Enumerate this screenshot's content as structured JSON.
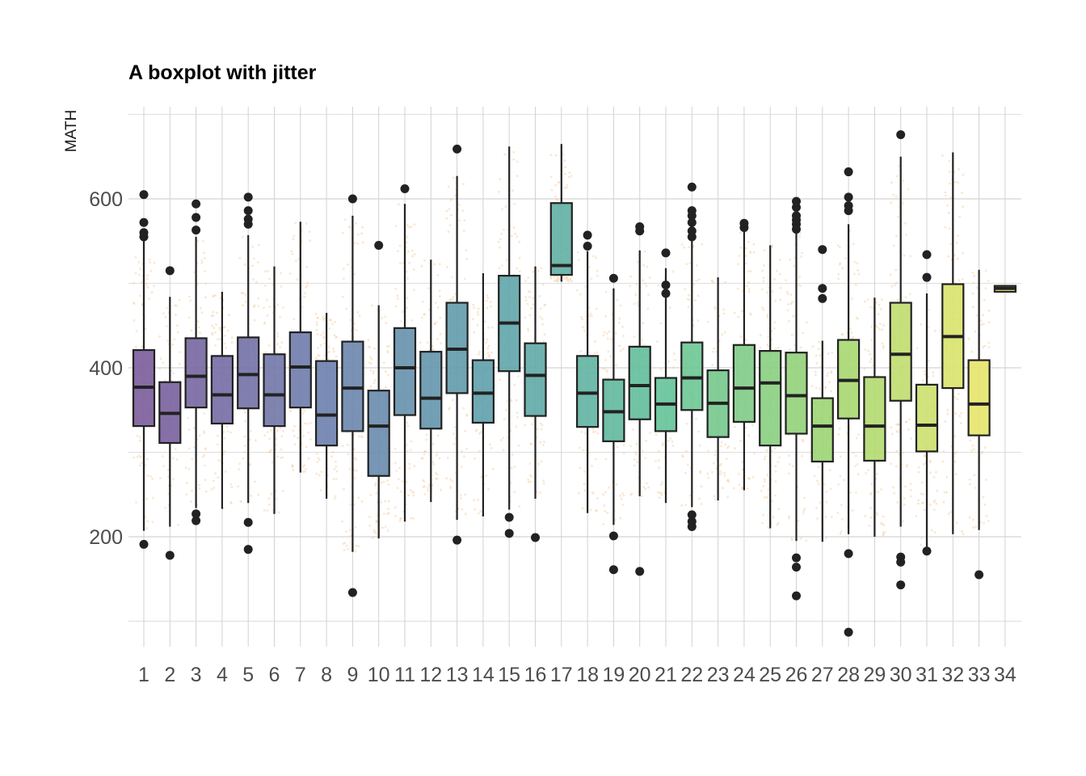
{
  "chart_data": {
    "type": "boxplot",
    "title": "A boxplot with jitter",
    "xlabel": "",
    "ylabel": "MATH",
    "ylim": [
      80,
      700
    ],
    "y_ticks": [
      200,
      400,
      600
    ],
    "grid": true,
    "legend": "none",
    "jitter_color": "#f5c99a",
    "box_stroke": "#222222",
    "outlier_color": "#222222",
    "palette": [
      "#7a5b99",
      "#f2e86a"
    ],
    "categories": [
      "1",
      "2",
      "3",
      "4",
      "5",
      "6",
      "7",
      "8",
      "9",
      "10",
      "11",
      "12",
      "13",
      "14",
      "15",
      "16",
      "17",
      "18",
      "19",
      "20",
      "21",
      "22",
      "23",
      "24",
      "25",
      "26",
      "27",
      "28",
      "29",
      "30",
      "31",
      "32",
      "33",
      "34"
    ],
    "boxes": [
      {
        "q1": 331,
        "median": 377,
        "q3": 421,
        "lo": 207,
        "hi": 551,
        "outliers": [
          191,
          555,
          560,
          572,
          605
        ]
      },
      {
        "q1": 311,
        "median": 346,
        "q3": 383,
        "lo": 212,
        "hi": 484,
        "outliers": [
          178,
          515
        ]
      },
      {
        "q1": 353,
        "median": 390,
        "q3": 435,
        "lo": 234,
        "hi": 555,
        "outliers": [
          219,
          227,
          563,
          578,
          594
        ]
      },
      {
        "q1": 334,
        "median": 368,
        "q3": 414,
        "lo": 233,
        "hi": 490,
        "outliers": []
      },
      {
        "q1": 352,
        "median": 392,
        "q3": 436,
        "lo": 240,
        "hi": 557,
        "outliers": [
          185,
          217,
          570,
          576,
          586,
          602
        ]
      },
      {
        "q1": 331,
        "median": 368,
        "q3": 416,
        "lo": 227,
        "hi": 520,
        "outliers": []
      },
      {
        "q1": 353,
        "median": 401,
        "q3": 442,
        "lo": 276,
        "hi": 573,
        "outliers": []
      },
      {
        "q1": 308,
        "median": 344,
        "q3": 408,
        "lo": 245,
        "hi": 465,
        "outliers": []
      },
      {
        "q1": 325,
        "median": 376,
        "q3": 431,
        "lo": 182,
        "hi": 580,
        "outliers": [
          134,
          600
        ]
      },
      {
        "q1": 272,
        "median": 331,
        "q3": 373,
        "lo": 198,
        "hi": 474,
        "outliers": [
          545
        ]
      },
      {
        "q1": 344,
        "median": 400,
        "q3": 447,
        "lo": 218,
        "hi": 594,
        "outliers": [
          612
        ]
      },
      {
        "q1": 328,
        "median": 364,
        "q3": 419,
        "lo": 241,
        "hi": 528,
        "outliers": []
      },
      {
        "q1": 370,
        "median": 422,
        "q3": 477,
        "lo": 220,
        "hi": 627,
        "outliers": [
          196,
          659
        ]
      },
      {
        "q1": 335,
        "median": 370,
        "q3": 409,
        "lo": 224,
        "hi": 512,
        "outliers": []
      },
      {
        "q1": 396,
        "median": 453,
        "q3": 509,
        "lo": 232,
        "hi": 662,
        "outliers": [
          204,
          223
        ]
      },
      {
        "q1": 343,
        "median": 391,
        "q3": 429,
        "lo": 245,
        "hi": 520,
        "outliers": [
          199
        ]
      },
      {
        "q1": 510,
        "median": 521,
        "q3": 595,
        "lo": 502,
        "hi": 665,
        "outliers": []
      },
      {
        "q1": 330,
        "median": 370,
        "q3": 414,
        "lo": 228,
        "hi": 538,
        "outliers": [
          544,
          557
        ]
      },
      {
        "q1": 313,
        "median": 348,
        "q3": 386,
        "lo": 214,
        "hi": 494,
        "outliers": [
          161,
          201,
          506
        ]
      },
      {
        "q1": 339,
        "median": 379,
        "q3": 425,
        "lo": 248,
        "hi": 539,
        "outliers": [
          159,
          562,
          567
        ]
      },
      {
        "q1": 325,
        "median": 357,
        "q3": 388,
        "lo": 240,
        "hi": 518,
        "outliers": [
          488,
          498,
          536
        ]
      },
      {
        "q1": 350,
        "median": 388,
        "q3": 430,
        "lo": 235,
        "hi": 550,
        "outliers": [
          212,
          218,
          226,
          555,
          562,
          572,
          580,
          586,
          614
        ]
      },
      {
        "q1": 318,
        "median": 358,
        "q3": 397,
        "lo": 243,
        "hi": 507,
        "outliers": []
      },
      {
        "q1": 336,
        "median": 376,
        "q3": 427,
        "lo": 255,
        "hi": 562,
        "outliers": [
          566,
          571
        ]
      },
      {
        "q1": 308,
        "median": 382,
        "q3": 420,
        "lo": 210,
        "hi": 545,
        "outliers": []
      },
      {
        "q1": 322,
        "median": 367,
        "q3": 418,
        "lo": 195,
        "hi": 560,
        "outliers": [
          130,
          164,
          175,
          564,
          570,
          575,
          580,
          590,
          597
        ]
      },
      {
        "q1": 289,
        "median": 331,
        "q3": 364,
        "lo": 194,
        "hi": 432,
        "outliers": [
          482,
          494,
          540
        ]
      },
      {
        "q1": 340,
        "median": 385,
        "q3": 433,
        "lo": 203,
        "hi": 570,
        "outliers": [
          87,
          180,
          586,
          592,
          602,
          632
        ]
      },
      {
        "q1": 290,
        "median": 331,
        "q3": 389,
        "lo": 200,
        "hi": 483,
        "outliers": []
      },
      {
        "q1": 361,
        "median": 416,
        "q3": 477,
        "lo": 212,
        "hi": 650,
        "outliers": [
          143,
          170,
          176,
          676
        ]
      },
      {
        "q1": 301,
        "median": 332,
        "q3": 380,
        "lo": 188,
        "hi": 488,
        "outliers": [
          183,
          507,
          534
        ]
      },
      {
        "q1": 376,
        "median": 437,
        "q3": 499,
        "lo": 203,
        "hi": 655,
        "outliers": []
      },
      {
        "q1": 320,
        "median": 357,
        "q3": 409,
        "lo": 208,
        "hi": 516,
        "outliers": [
          155
        ]
      },
      {
        "q1": 490,
        "median": 494,
        "q3": 497,
        "lo": 490,
        "hi": 497,
        "outliers": []
      }
    ]
  }
}
